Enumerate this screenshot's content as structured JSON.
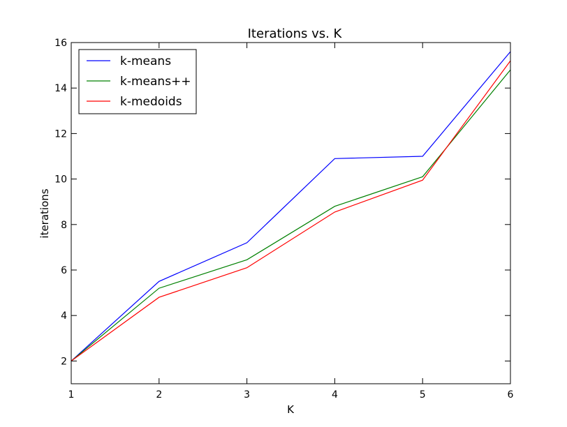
{
  "chart_data": {
    "type": "line",
    "title": "Iterations vs. K",
    "xlabel": "K",
    "ylabel": "iterations",
    "x": [
      1,
      2,
      3,
      4,
      5,
      6
    ],
    "xlim": [
      1,
      6
    ],
    "ylim": [
      1,
      16
    ],
    "xticks": [
      "1",
      "2",
      "3",
      "4",
      "5",
      "6"
    ],
    "yticks": [
      "2",
      "4",
      "6",
      "8",
      "10",
      "12",
      "14",
      "16"
    ],
    "grid": false,
    "legend_position": "top-left",
    "series": [
      {
        "name": "k-means",
        "color": "#0000ff",
        "values": [
          2.0,
          5.5,
          7.2,
          10.9,
          11.0,
          15.6
        ]
      },
      {
        "name": "k-means++",
        "color": "#008000",
        "values": [
          2.0,
          5.2,
          6.45,
          8.8,
          10.1,
          14.8
        ]
      },
      {
        "name": "k-medoids",
        "color": "#ff0000",
        "values": [
          2.0,
          4.8,
          6.1,
          8.55,
          9.95,
          15.2
        ]
      }
    ]
  }
}
